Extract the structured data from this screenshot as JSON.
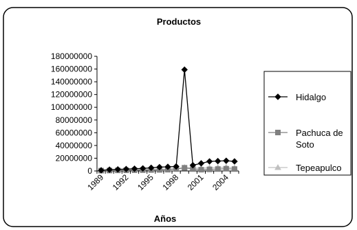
{
  "chart_data": {
    "type": "line",
    "title": "Productos",
    "xlabel": "Años",
    "ylabel": "",
    "x": [
      1989,
      1990,
      1991,
      1992,
      1993,
      1994,
      1995,
      1996,
      1997,
      1998,
      1999,
      2000,
      2001,
      2002,
      2003,
      2004,
      2005
    ],
    "x_tick_labels": [
      "1989",
      "1992",
      "1995",
      "1998",
      "2001",
      "2004"
    ],
    "y_tick_labels": [
      "0",
      "20000000",
      "40000000",
      "60000000",
      "80000000",
      "100000000",
      "120000000",
      "140000000",
      "160000000",
      "180000000"
    ],
    "ylim": [
      0,
      180000000
    ],
    "grid": false,
    "legend_position": "right",
    "series": [
      {
        "name": "Hidalgo",
        "color": "#000000",
        "marker": "diamond",
        "values": [
          1000000,
          2000000,
          2500000,
          3000000,
          3500000,
          4000000,
          5000000,
          6000000,
          6500000,
          7000000,
          159000000,
          9000000,
          12000000,
          15000000,
          15500000,
          16000000,
          15000000
        ]
      },
      {
        "name": "Pachuca de Soto",
        "color": "#808080",
        "marker": "square",
        "values": [
          500000,
          700000,
          900000,
          1000000,
          1200000,
          1300000,
          1500000,
          1700000,
          2000000,
          3000000,
          5000000,
          3000000,
          2000000,
          2500000,
          3000000,
          3500000,
          3000000
        ]
      },
      {
        "name": "Tepeapulco",
        "color": "#c0c0c0",
        "marker": "triangle",
        "values": [
          1500000,
          1800000,
          2000000,
          2200000,
          2500000,
          2600000,
          2800000,
          3000000,
          3200000,
          3500000,
          5500000,
          4500000,
          4500000,
          5000000,
          5500000,
          6000000,
          5000000
        ]
      }
    ]
  }
}
